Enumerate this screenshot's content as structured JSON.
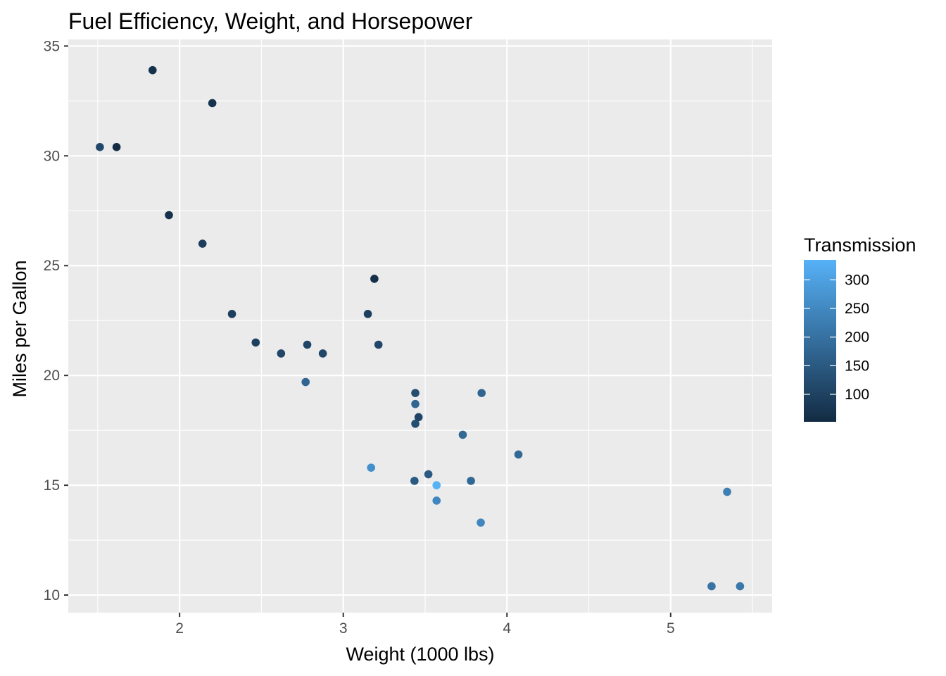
{
  "chart_data": {
    "type": "scatter",
    "title": "Fuel Efficiency, Weight, and Horsepower",
    "xlabel": "Weight (1000 lbs)",
    "ylabel": "Miles per Gallon",
    "xlim": [
      1.32,
      5.62
    ],
    "ylim": [
      9.2,
      35.3
    ],
    "x_ticks": [
      2,
      3,
      4,
      5
    ],
    "y_ticks": [
      10,
      15,
      20,
      25,
      30,
      35
    ],
    "x_tick_labels": [
      "2",
      "3",
      "4",
      "5"
    ],
    "y_tick_labels": [
      "10",
      "15",
      "20",
      "25",
      "30",
      "35"
    ],
    "grid": true,
    "panel_background": "#ebebeb",
    "grid_color": "#ffffff",
    "legend": {
      "title": "Transmission",
      "placement": "right",
      "type": "colorbar",
      "range": [
        52,
        335
      ],
      "breaks": [
        100,
        150,
        200,
        250,
        300
      ],
      "break_labels": [
        "100",
        "150",
        "200",
        "250",
        "300"
      ],
      "low_color": "#132b43",
      "high_color": "#56b1f7"
    },
    "points": [
      {
        "x": 2.62,
        "y": 21.0,
        "color_value": 110
      },
      {
        "x": 2.875,
        "y": 21.0,
        "color_value": 110
      },
      {
        "x": 2.32,
        "y": 22.8,
        "color_value": 93
      },
      {
        "x": 3.215,
        "y": 21.4,
        "color_value": 110
      },
      {
        "x": 3.44,
        "y": 18.7,
        "color_value": 175
      },
      {
        "x": 3.46,
        "y": 18.1,
        "color_value": 105
      },
      {
        "x": 3.57,
        "y": 14.3,
        "color_value": 245
      },
      {
        "x": 3.19,
        "y": 24.4,
        "color_value": 62
      },
      {
        "x": 3.15,
        "y": 22.8,
        "color_value": 95
      },
      {
        "x": 3.44,
        "y": 19.2,
        "color_value": 123
      },
      {
        "x": 3.44,
        "y": 17.8,
        "color_value": 123
      },
      {
        "x": 4.07,
        "y": 16.4,
        "color_value": 180
      },
      {
        "x": 3.73,
        "y": 17.3,
        "color_value": 180
      },
      {
        "x": 3.78,
        "y": 15.2,
        "color_value": 180
      },
      {
        "x": 5.25,
        "y": 10.4,
        "color_value": 205
      },
      {
        "x": 5.424,
        "y": 10.4,
        "color_value": 215
      },
      {
        "x": 5.345,
        "y": 14.7,
        "color_value": 230
      },
      {
        "x": 2.2,
        "y": 32.4,
        "color_value": 66
      },
      {
        "x": 1.615,
        "y": 30.4,
        "color_value": 52
      },
      {
        "x": 1.835,
        "y": 33.9,
        "color_value": 65
      },
      {
        "x": 2.465,
        "y": 21.5,
        "color_value": 97
      },
      {
        "x": 3.52,
        "y": 15.5,
        "color_value": 150
      },
      {
        "x": 3.435,
        "y": 15.2,
        "color_value": 150
      },
      {
        "x": 3.84,
        "y": 13.3,
        "color_value": 245
      },
      {
        "x": 3.845,
        "y": 19.2,
        "color_value": 175
      },
      {
        "x": 1.935,
        "y": 27.3,
        "color_value": 66
      },
      {
        "x": 2.14,
        "y": 26.0,
        "color_value": 91
      },
      {
        "x": 1.513,
        "y": 30.4,
        "color_value": 113
      },
      {
        "x": 3.17,
        "y": 15.8,
        "color_value": 264
      },
      {
        "x": 2.77,
        "y": 19.7,
        "color_value": 175
      },
      {
        "x": 3.57,
        "y": 15.0,
        "color_value": 335
      },
      {
        "x": 2.78,
        "y": 21.4,
        "color_value": 109
      }
    ]
  }
}
